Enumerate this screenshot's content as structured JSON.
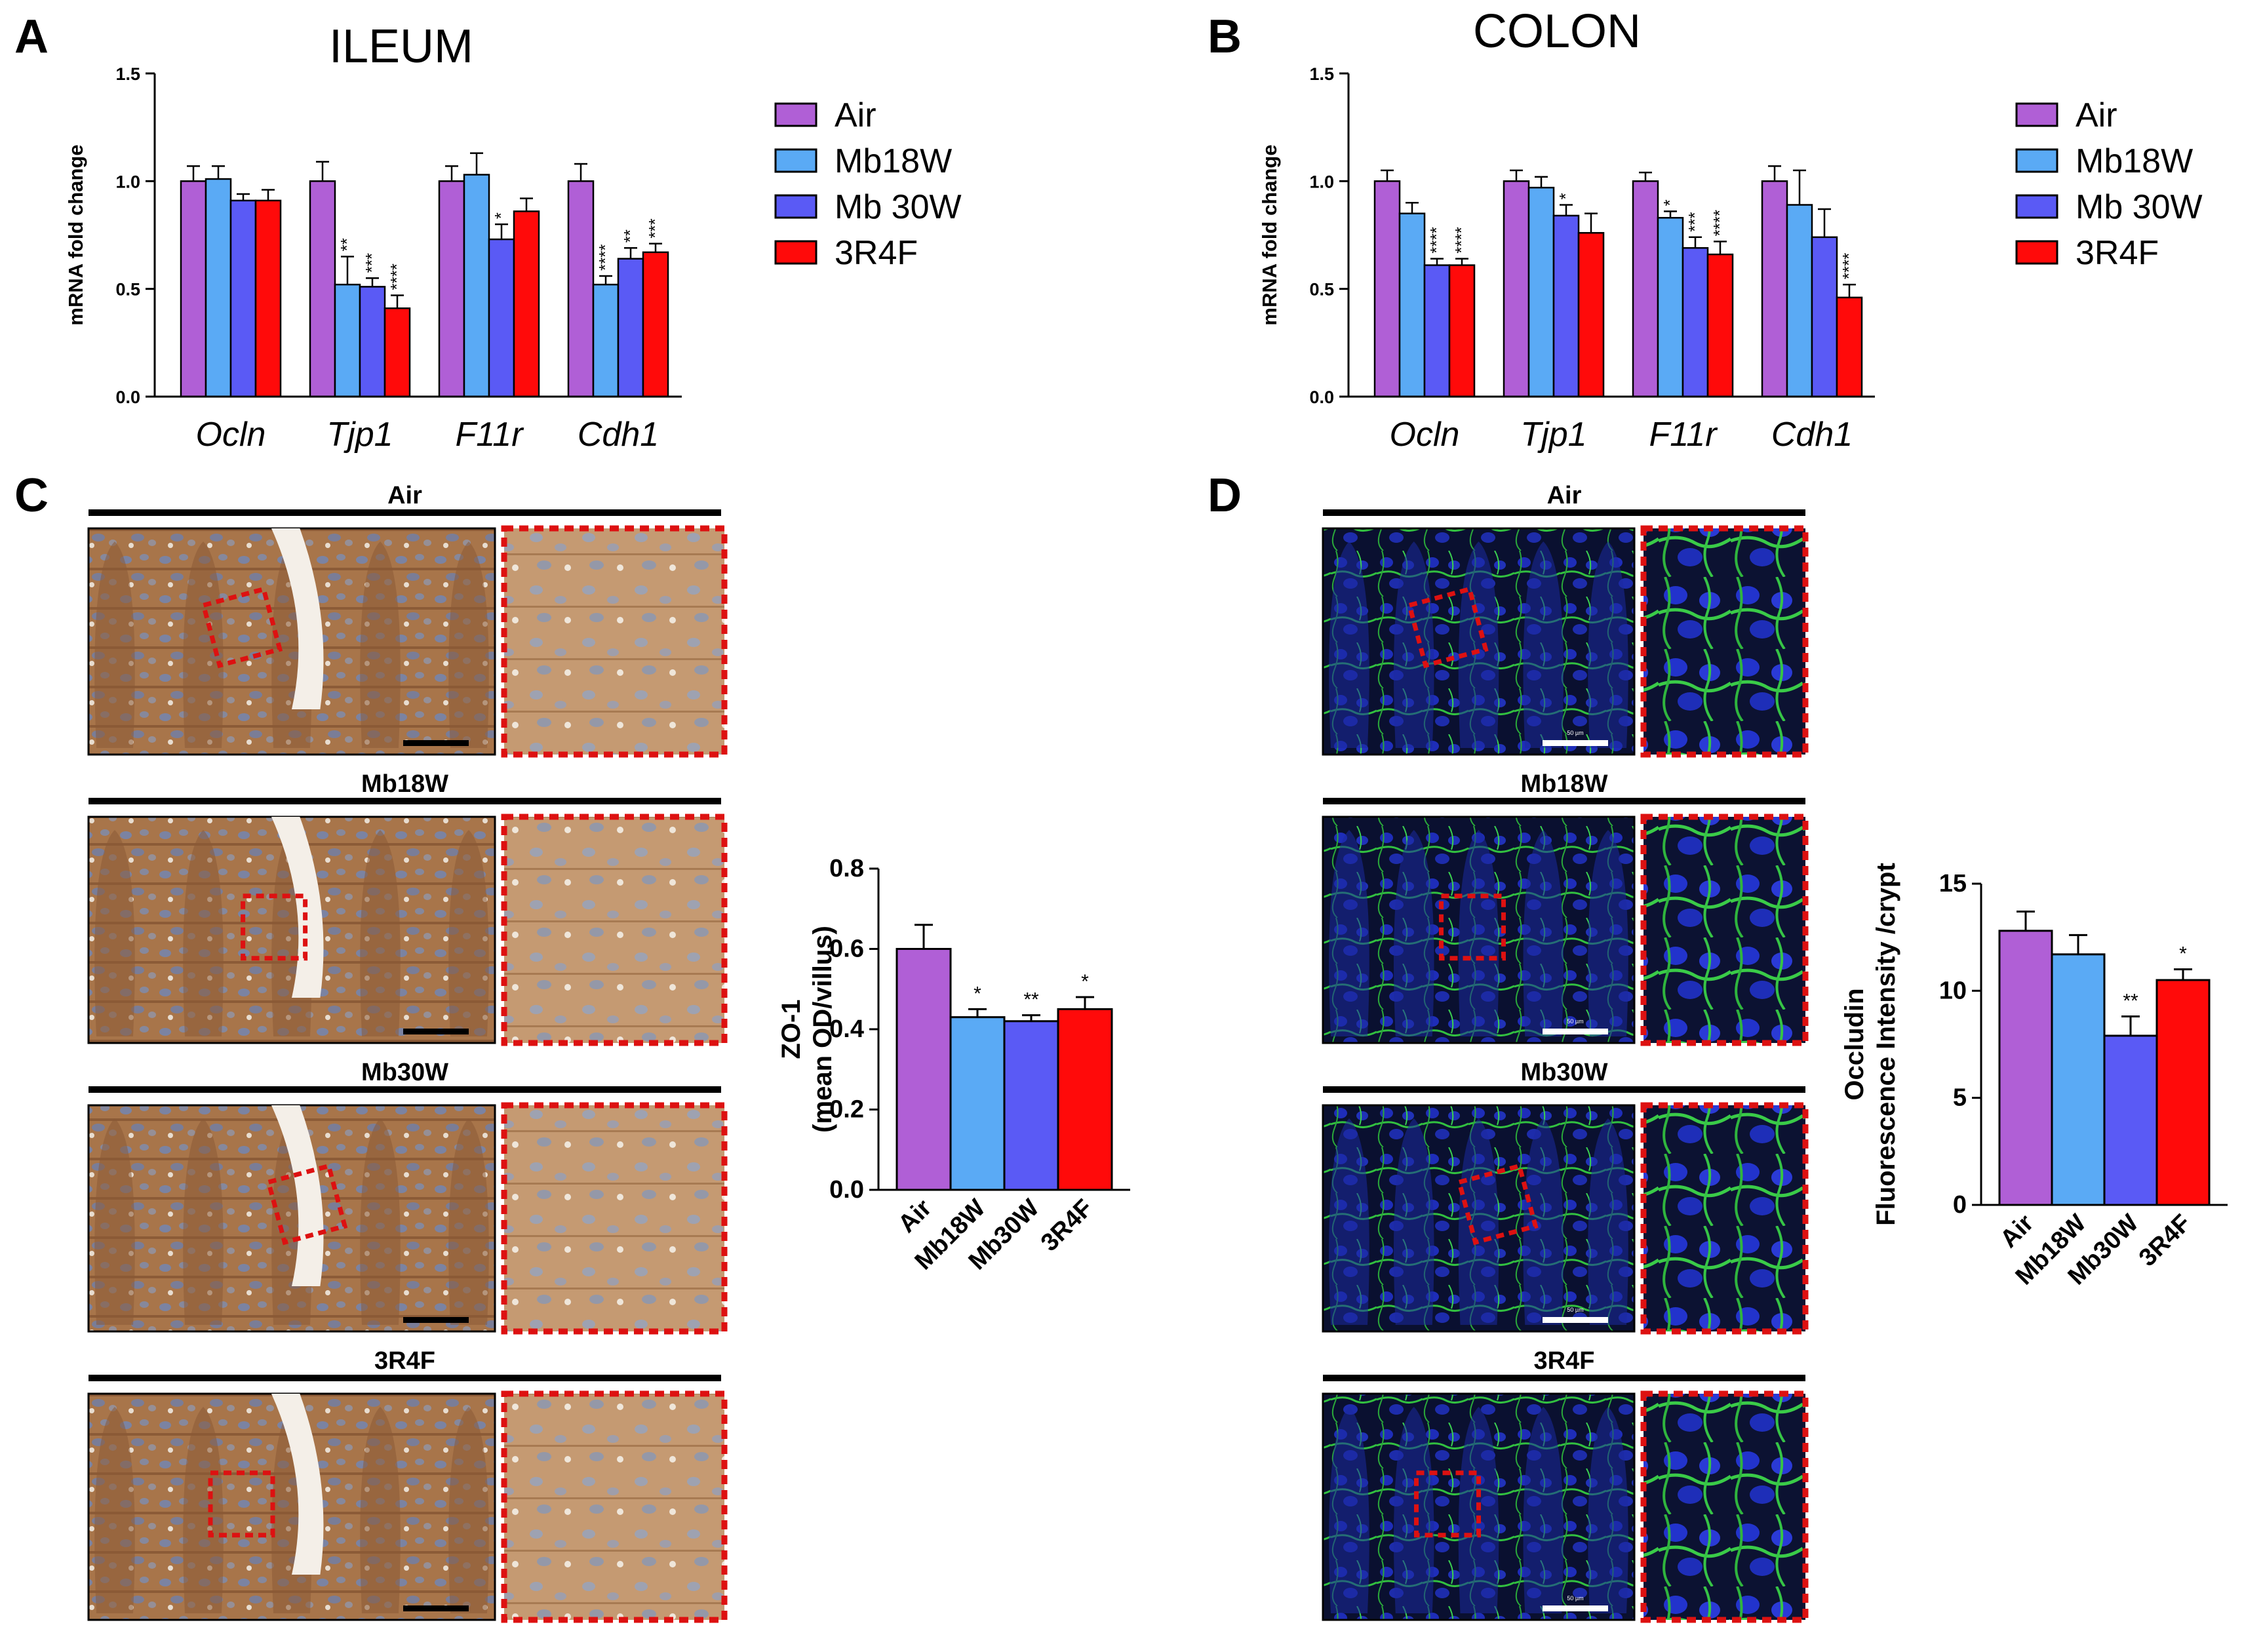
{
  "colors": {
    "Air": "#b05fd6",
    "Mb18W": "#5aaaf5",
    "Mb 30W": "#5a5af5",
    "3R4F": "#ff0a0a",
    "inset_border": "#dd1111"
  },
  "panels": {
    "A": "A",
    "B": "B",
    "C": "C",
    "D": "D"
  },
  "legend": {
    "A": [
      "Air",
      "Mb18W",
      "Mb 30W",
      "3R4F"
    ],
    "B": [
      "Air",
      "Mb18W",
      "Mb 30W",
      "3R4F"
    ]
  },
  "images": {
    "C": {
      "titles": [
        "Air",
        "Mb18W",
        "Mb30W",
        "3R4F"
      ],
      "stain": "ihc-brown-blue"
    },
    "D": {
      "titles": [
        "Air",
        "Mb18W",
        "Mb30W",
        "3R4F"
      ],
      "stain": "immunofluorescence-green-blue",
      "scale_label": "50 µm"
    }
  },
  "chart_data": [
    {
      "id": "A",
      "type": "bar",
      "title": "ILEUM",
      "ylabel": "mRNA fold change",
      "ylim": [
        0,
        1.5
      ],
      "yticks": [
        "0.0",
        "0.5",
        "1.0",
        "1.5"
      ],
      "categories": [
        "Ocln",
        "Tjp1",
        "F11r",
        "Cdh1"
      ],
      "series": [
        {
          "name": "Air",
          "values": [
            1.0,
            1.0,
            1.0,
            1.0
          ],
          "errors": [
            0.07,
            0.09,
            0.07,
            0.08
          ],
          "sig": [
            "",
            "",
            "",
            ""
          ]
        },
        {
          "name": "Mb18W",
          "values": [
            1.01,
            0.52,
            1.03,
            0.52
          ],
          "errors": [
            0.06,
            0.13,
            0.1,
            0.04
          ],
          "sig": [
            "",
            "**",
            "",
            "****"
          ]
        },
        {
          "name": "Mb 30W",
          "values": [
            0.91,
            0.51,
            0.73,
            0.64
          ],
          "errors": [
            0.03,
            0.04,
            0.07,
            0.05
          ],
          "sig": [
            "",
            "***",
            "*",
            "**"
          ]
        },
        {
          "name": "3R4F",
          "values": [
            0.91,
            0.41,
            0.86,
            0.67
          ],
          "errors": [
            0.05,
            0.06,
            0.06,
            0.04
          ],
          "sig": [
            "",
            "****",
            "",
            "***"
          ]
        }
      ]
    },
    {
      "id": "B",
      "type": "bar",
      "title": "COLON",
      "ylabel": "mRNA fold change",
      "ylim": [
        0,
        1.5
      ],
      "yticks": [
        "0.0",
        "0.5",
        "1.0",
        "1.5"
      ],
      "categories": [
        "Ocln",
        "Tjp1",
        "F11r",
        "Cdh1"
      ],
      "series": [
        {
          "name": "Air",
          "values": [
            1.0,
            1.0,
            1.0,
            1.0
          ],
          "errors": [
            0.05,
            0.05,
            0.04,
            0.07
          ],
          "sig": [
            "",
            "",
            "",
            ""
          ]
        },
        {
          "name": "Mb18W",
          "values": [
            0.85,
            0.97,
            0.83,
            0.89
          ],
          "errors": [
            0.05,
            0.05,
            0.03,
            0.16
          ],
          "sig": [
            "",
            "",
            "*",
            ""
          ]
        },
        {
          "name": "Mb 30W",
          "values": [
            0.61,
            0.84,
            0.69,
            0.74
          ],
          "errors": [
            0.03,
            0.05,
            0.05,
            0.13
          ],
          "sig": [
            "****",
            "*",
            "***",
            ""
          ]
        },
        {
          "name": "3R4F",
          "values": [
            0.61,
            0.76,
            0.66,
            0.46
          ],
          "errors": [
            0.03,
            0.09,
            0.06,
            0.06
          ],
          "sig": [
            "****",
            "",
            "****",
            "****"
          ]
        }
      ]
    },
    {
      "id": "C",
      "type": "bar",
      "ylabel_lines": [
        "ZO-1",
        "(mean OD/villus)"
      ],
      "ylim": [
        0,
        0.8
      ],
      "yticks": [
        "0.0",
        "0.2",
        "0.4",
        "0.6",
        "0.8"
      ],
      "categories": [
        "Air",
        "Mb18W",
        "Mb30W",
        "3R4F"
      ],
      "values": [
        0.6,
        0.43,
        0.42,
        0.45
      ],
      "errors": [
        0.06,
        0.02,
        0.015,
        0.03
      ],
      "sig": [
        "",
        "*",
        "**",
        "*"
      ]
    },
    {
      "id": "D",
      "type": "bar",
      "ylabel_lines": [
        "Occludin",
        "Fluorescence Intensity /crypt"
      ],
      "ylim": [
        0,
        15
      ],
      "yticks": [
        "0",
        "5",
        "10",
        "15"
      ],
      "categories": [
        "Air",
        "Mb18W",
        "Mb30W",
        "3R4F"
      ],
      "values": [
        12.8,
        11.7,
        7.9,
        10.5
      ],
      "errors": [
        0.9,
        0.9,
        0.9,
        0.5
      ],
      "sig": [
        "",
        "",
        "**",
        "*"
      ]
    }
  ]
}
